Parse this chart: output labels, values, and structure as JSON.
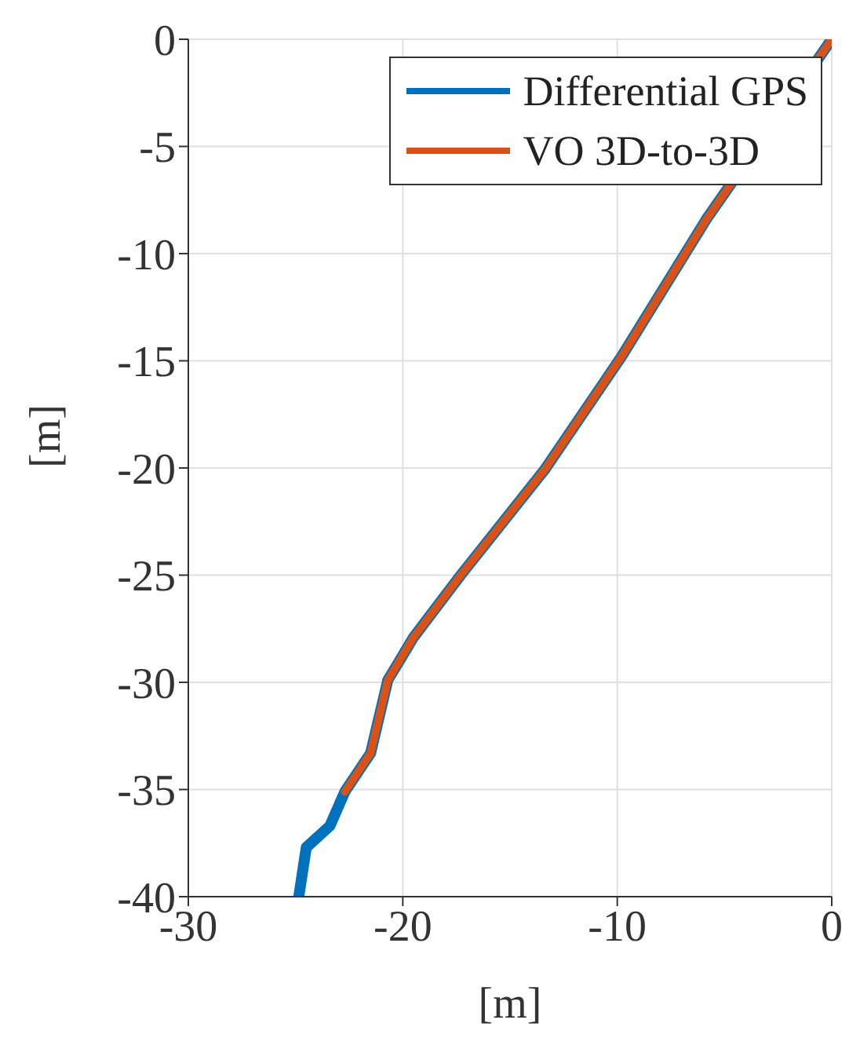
{
  "chart_data": {
    "type": "line",
    "xlabel": "[m]",
    "ylabel": "[m]",
    "xlim": [
      -30,
      0
    ],
    "xticks": [
      -30,
      -20,
      -10,
      0
    ],
    "ylim": [
      -40,
      0
    ],
    "yticks": [
      -40,
      -35,
      -30,
      -25,
      -20,
      -15,
      -10,
      -5,
      0
    ],
    "grid": true,
    "legend": "top right",
    "line_style": "solid",
    "series": [
      {
        "name": "Differential GPS",
        "color": "#0072bd",
        "x": [
          -24.85,
          -24.5,
          -23.4,
          -22.7,
          -21.5,
          -20.7,
          -19.5,
          -17.3,
          -13.4,
          -9.8,
          -5.85,
          0
        ],
        "values": [
          -40,
          -37.7,
          -36.7,
          -35.1,
          -33.3,
          -29.9,
          -27.9,
          -25,
          -20.1,
          -14.8,
          -8.4,
          0
        ]
      },
      {
        "name": "VO 3D-to-3D",
        "color": "#d95319",
        "x": [
          -22.7,
          -21.5,
          -20.7,
          -19.5,
          -17.3,
          -13.4,
          -9.8,
          -5.85,
          0
        ],
        "values": [
          -35.1,
          -33.3,
          -29.9,
          -27.9,
          -25,
          -20.1,
          -14.8,
          -8.4,
          0
        ]
      }
    ]
  }
}
